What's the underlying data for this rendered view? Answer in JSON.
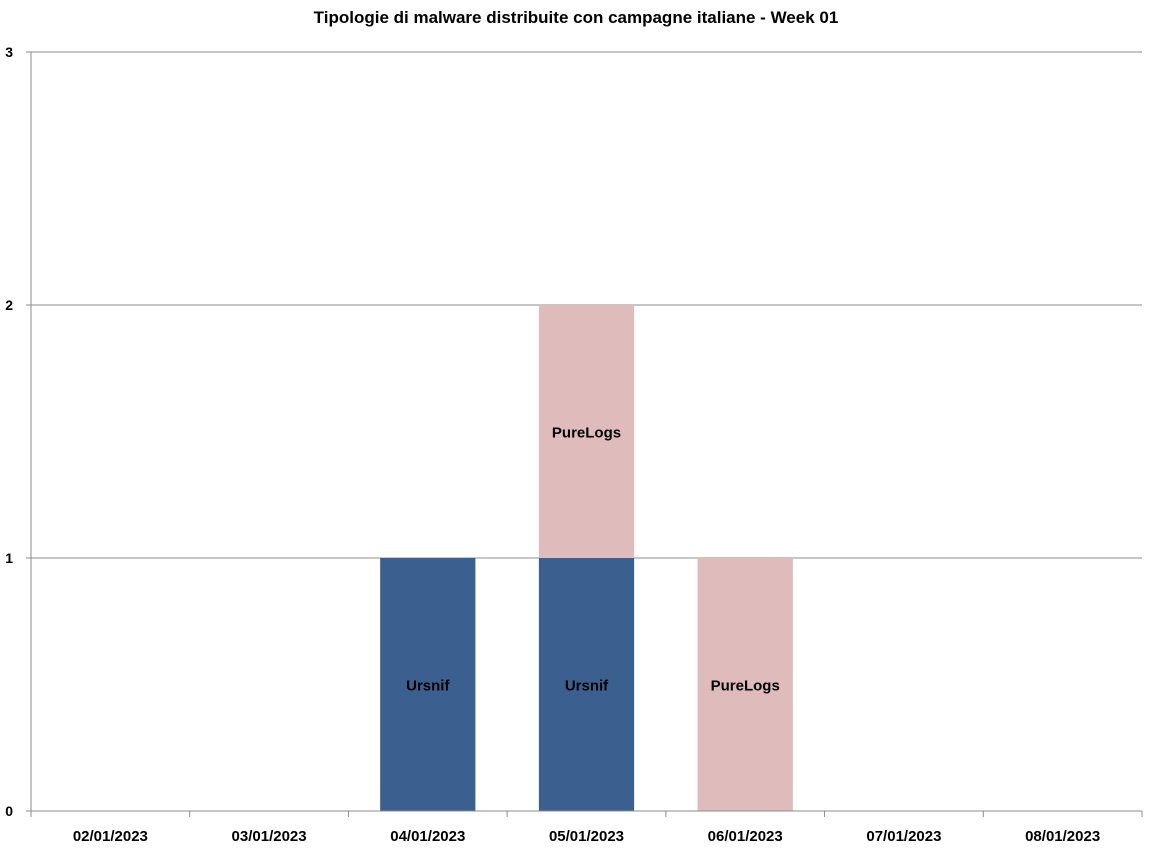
{
  "chart_data": {
    "type": "bar",
    "stacked": true,
    "title": "Tipologie di malware distribuite con campagne italiane - Week 01",
    "categories": [
      "02/01/2023",
      "03/01/2023",
      "04/01/2023",
      "05/01/2023",
      "06/01/2023",
      "07/01/2023",
      "08/01/2023"
    ],
    "series": [
      {
        "name": "Ursnif",
        "color": "#3b5f8f",
        "values": [
          0,
          0,
          1,
          1,
          0,
          0,
          0
        ]
      },
      {
        "name": "PureLogs",
        "color": "#e0bbbb",
        "values": [
          0,
          0,
          0,
          1,
          1,
          0,
          0
        ]
      }
    ],
    "ylim": [
      0,
      3
    ],
    "yticks": [
      0,
      1,
      2,
      3
    ],
    "grid": true,
    "legend": "none"
  }
}
